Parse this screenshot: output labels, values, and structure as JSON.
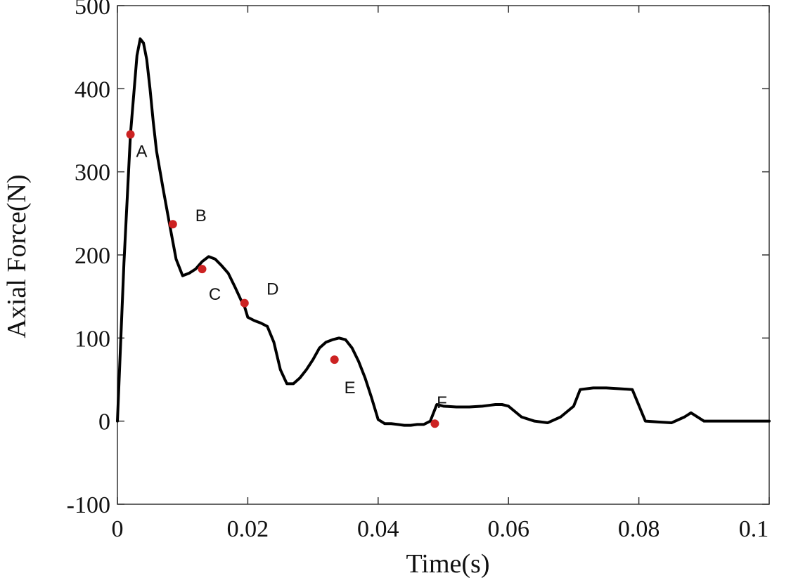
{
  "chart_data": {
    "type": "line",
    "xlabel": "Time(s)",
    "ylabel": "Axial Force(N)",
    "xlim": [
      0,
      0.1
    ],
    "ylim": [
      -100,
      500
    ],
    "xticks": [
      0,
      0.02,
      0.04,
      0.06,
      0.08,
      0.1
    ],
    "xtick_labels": [
      "0",
      "0.02",
      "0.04",
      "0.06",
      "0.08",
      "0.1"
    ],
    "yticks": [
      -100,
      0,
      100,
      200,
      300,
      400,
      500
    ],
    "ytick_labels": [
      "-100",
      "0",
      "100",
      "200",
      "300",
      "400",
      "500"
    ],
    "grid": false,
    "series": [
      {
        "color": "#000000",
        "x": [
          0,
          0.001,
          0.002,
          0.003,
          0.0035,
          0.004,
          0.0045,
          0.005,
          0.0055,
          0.006,
          0.007,
          0.008,
          0.009,
          0.01,
          0.011,
          0.012,
          0.013,
          0.014,
          0.015,
          0.016,
          0.017,
          0.018,
          0.019,
          0.0195,
          0.02,
          0.021,
          0.022,
          0.023,
          0.024,
          0.025,
          0.026,
          0.027,
          0.028,
          0.029,
          0.03,
          0.031,
          0.032,
          0.033,
          0.034,
          0.035,
          0.036,
          0.037,
          0.038,
          0.039,
          0.04,
          0.041,
          0.042,
          0.043,
          0.044,
          0.045,
          0.046,
          0.047,
          0.048,
          0.049,
          0.05,
          0.052,
          0.054,
          0.056,
          0.057,
          0.058,
          0.059,
          0.06,
          0.062,
          0.064,
          0.066,
          0.068,
          0.07,
          0.071,
          0.073,
          0.075,
          0.077,
          0.079,
          0.081,
          0.083,
          0.085,
          0.087,
          0.088,
          0.09,
          0.092,
          0.095,
          0.097,
          0.1
        ],
        "y": [
          0,
          190,
          345,
          440,
          460,
          455,
          435,
          400,
          360,
          325,
          280,
          237,
          195,
          175,
          178,
          183,
          192,
          198,
          195,
          187,
          178,
          162,
          145,
          138,
          125,
          121,
          118,
          114,
          95,
          62,
          45,
          45,
          52,
          62,
          74,
          88,
          95,
          98,
          100,
          98,
          88,
          72,
          52,
          28,
          2,
          -3,
          -3,
          -4,
          -5,
          -5,
          -4,
          -4,
          0,
          20,
          18,
          17,
          17,
          18,
          19,
          20,
          20,
          18,
          5,
          0,
          -2,
          5,
          18,
          38,
          40,
          40,
          39,
          38,
          0,
          -1,
          -2,
          5,
          10,
          0,
          0,
          0,
          0,
          0
        ],
        "x_override_note": ""
      }
    ],
    "markers": [
      {
        "label": "A",
        "x": 0.002,
        "y": 345,
        "color": "#cc2222"
      },
      {
        "label": "B",
        "x": 0.0085,
        "y": 237,
        "color": "#cc2222"
      },
      {
        "label": "C",
        "x": 0.013,
        "y": 183,
        "color": "#cc2222"
      },
      {
        "label": "D",
        "x": 0.0195,
        "y": 142,
        "color": "#cc2222"
      },
      {
        "label": "E",
        "x": 0.0333,
        "y": 74,
        "color": "#cc2222"
      },
      {
        "label": "F",
        "x": 0.0487,
        "y": -3,
        "color": "#cc2222"
      }
    ]
  }
}
